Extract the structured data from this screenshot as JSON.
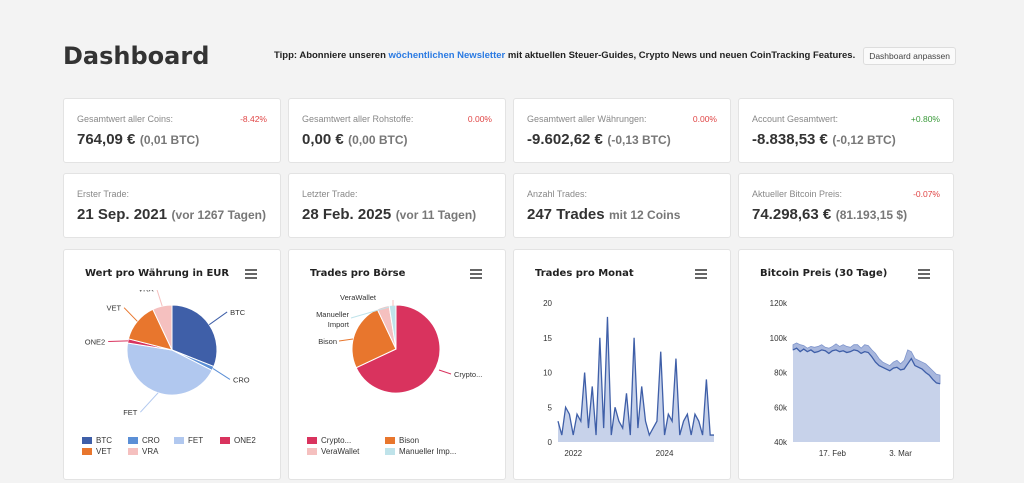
{
  "header": {
    "title": "Dashboard",
    "tip_prefix": "Tipp: Abonniere unseren",
    "tip_link": "wöchentlichen Newsletter",
    "tip_suffix": "mit aktuellen Steuer-Guides, Crypto News und neuen CoinTracking Features.",
    "customize_label": "Dashboard anpassen"
  },
  "stats": [
    {
      "label": "Gesamtwert aller Coins:",
      "main": "764,09 €",
      "sub": "(0,01 BTC)",
      "delta": "-8.42%",
      "delta_class": "neg"
    },
    {
      "label": "Gesamtwert aller Rohstoffe:",
      "main": "0,00 €",
      "sub": "(0,00 BTC)",
      "delta": "0.00%",
      "delta_class": "neg"
    },
    {
      "label": "Gesamtwert aller Währungen:",
      "main": "-9.602,62 €",
      "sub": "(-0,13 BTC)",
      "delta": "0.00%",
      "delta_class": "neg"
    },
    {
      "label": "Account Gesamtwert:",
      "main": "-8.838,53 €",
      "sub": "(-0,12 BTC)",
      "delta": "+0.80%",
      "delta_class": "pos"
    },
    {
      "label": "Erster Trade:",
      "main": "21 Sep. 2021",
      "sub": "(vor 1267 Tagen)",
      "delta": "",
      "delta_class": ""
    },
    {
      "label": "Letzter Trade:",
      "main": "28 Feb. 2025",
      "sub": "(vor 11 Tagen)",
      "delta": "",
      "delta_class": ""
    },
    {
      "label": "Anzahl Trades:",
      "main": "247 Trades",
      "sub": "mit 12 Coins",
      "delta": "",
      "delta_class": ""
    },
    {
      "label": "Aktueller Bitcoin Preis:",
      "main": "74.298,63 €",
      "sub": "(81.193,15 $)",
      "delta": "-0.07%",
      "delta_class": "neg"
    }
  ],
  "icons": {
    "menu": "hamburger-menu-icon"
  },
  "chart_data": [
    {
      "type": "pie",
      "title": "Wert pro Währung in EUR",
      "slices": [
        {
          "name": "BTC",
          "value": 31,
          "color": "#3f5fa8"
        },
        {
          "name": "CRO",
          "value": 1.5,
          "color": "#5b8fd6"
        },
        {
          "name": "FET",
          "value": 45,
          "color": "#b1c8ef"
        },
        {
          "name": "ONE2",
          "value": 1.5,
          "color": "#d9335e"
        },
        {
          "name": "VET",
          "value": 14,
          "color": "#e8762d"
        },
        {
          "name": "VRA",
          "value": 7,
          "color": "#f5c0bf"
        }
      ],
      "legend_placement": "bottom"
    },
    {
      "type": "pie",
      "title": "Trades pro Börse",
      "slices": [
        {
          "name": "Crypto.com",
          "label": "Crypto...",
          "value": 68,
          "color": "#d9335e"
        },
        {
          "name": "Bison",
          "value": 25,
          "color": "#e8762d"
        },
        {
          "name": "VeraWallet",
          "value": 4.5,
          "color": "#f5c0bf"
        },
        {
          "name": "Manueller Import",
          "label": "Manueller Imp...",
          "value": 2.5,
          "color": "#bfe3ea"
        }
      ],
      "outer_labels": [
        "VeraWallet",
        "Manueller",
        "Import",
        "Bison",
        "Crypto..."
      ],
      "legend_placement": "bottom"
    },
    {
      "type": "area",
      "title": "Trades pro Monat",
      "ylim": [
        0,
        20
      ],
      "yticks": [
        "0",
        "5",
        "10",
        "15",
        "20"
      ],
      "xticks": [
        "2022",
        "2024"
      ],
      "xtick_positions": [
        4,
        28
      ],
      "x": [
        0,
        1,
        2,
        3,
        4,
        5,
        6,
        7,
        8,
        9,
        10,
        11,
        12,
        13,
        14,
        15,
        16,
        17,
        18,
        19,
        20,
        21,
        22,
        23,
        24,
        25,
        26,
        27,
        28,
        29,
        30,
        31,
        32,
        33,
        34,
        35,
        36,
        37,
        38,
        39,
        40,
        41
      ],
      "values": [
        3,
        1,
        5,
        4,
        1,
        4,
        3,
        10,
        2,
        8,
        1,
        15,
        2,
        18,
        1,
        5,
        3,
        2,
        7,
        1,
        15,
        2,
        8,
        3,
        1,
        2,
        3,
        13,
        1,
        4,
        3,
        12,
        1,
        3,
        4,
        1,
        4,
        3,
        1,
        9,
        1,
        1
      ],
      "color": "#3f5fa8",
      "fill": "#c7d2ea"
    },
    {
      "type": "area",
      "title": "Bitcoin Preis (30 Tage)",
      "ylim": [
        40000,
        120000
      ],
      "yticks": [
        "40k",
        "60k",
        "80k",
        "100k",
        "120k"
      ],
      "xticks": [
        "17. Feb",
        "3. Mar"
      ],
      "xtick_positions": [
        11,
        30
      ],
      "x": [
        0,
        1,
        2,
        3,
        4,
        5,
        6,
        7,
        8,
        9,
        10,
        11,
        12,
        13,
        14,
        15,
        16,
        17,
        18,
        19,
        20,
        21,
        22,
        23,
        24,
        25,
        26,
        27,
        28,
        29,
        30,
        31,
        32,
        33,
        34,
        35,
        36,
        37,
        38,
        39,
        40,
        41
      ],
      "values": [
        93000,
        94000,
        92000,
        93500,
        92000,
        93000,
        91500,
        92000,
        93000,
        92500,
        91000,
        92500,
        93000,
        92000,
        92500,
        91500,
        92000,
        93000,
        92500,
        91000,
        92000,
        91500,
        89000,
        86000,
        84000,
        83000,
        82000,
        81000,
        82500,
        83000,
        81500,
        82000,
        85000,
        88000,
        84000,
        83000,
        82000,
        80000,
        78500,
        76000,
        74000,
        73500
      ],
      "band": [
        96000,
        97000,
        96000,
        95500,
        94000,
        95000,
        94500,
        95000,
        96000,
        94500,
        94000,
        95000,
        96500,
        95000,
        96000,
        95000,
        94500,
        96000,
        96000,
        94000,
        96000,
        95500,
        93000,
        91000,
        88000,
        86000,
        85000,
        84000,
        86000,
        87000,
        85000,
        87000,
        93000,
        92000,
        88000,
        87000,
        86000,
        85000,
        83000,
        81000,
        79000,
        78500
      ],
      "color": "#3f5fa8",
      "fill": "#c7d2ea"
    }
  ]
}
